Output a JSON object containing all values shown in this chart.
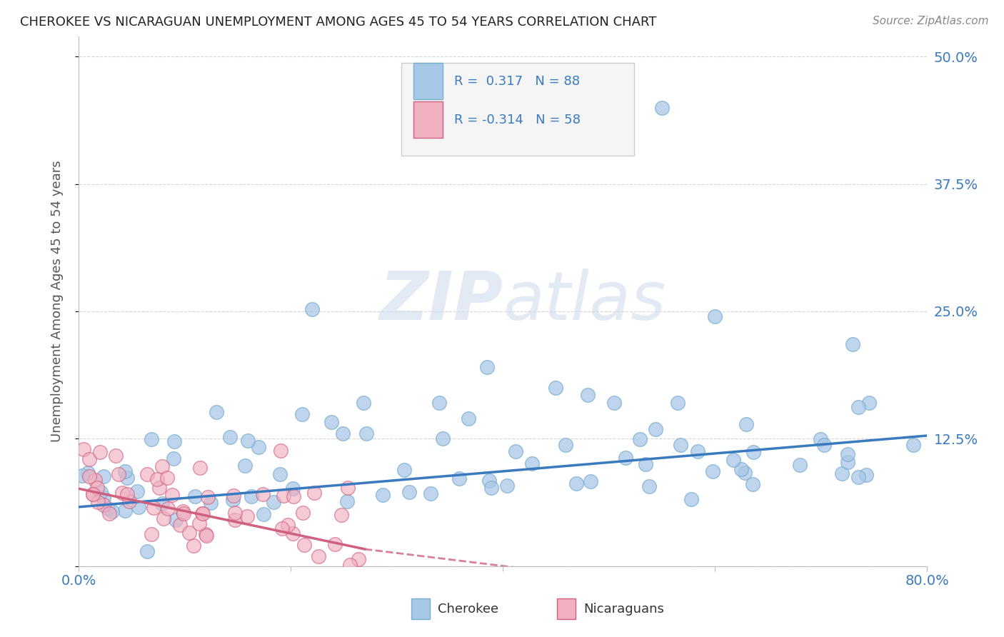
{
  "title": "CHEROKEE VS NICARAGUAN UNEMPLOYMENT AMONG AGES 45 TO 54 YEARS CORRELATION CHART",
  "source": "Source: ZipAtlas.com",
  "ylabel": "Unemployment Among Ages 45 to 54 years",
  "xlim": [
    0.0,
    0.8
  ],
  "ylim": [
    0.0,
    0.52
  ],
  "cherokee_R": 0.317,
  "cherokee_N": 88,
  "nicaraguan_R": -0.314,
  "nicaraguan_N": 58,
  "cherokee_color": "#a8c8e8",
  "cherokee_edge_color": "#7aaed0",
  "cherokee_line_color": "#3a7abf",
  "nicaraguan_color": "#f0b0c0",
  "nicaraguan_edge_color": "#d06080",
  "nicaraguan_line_color": "#d06080",
  "background_color": "#ffffff",
  "grid_color": "#cccccc",
  "title_color": "#222222",
  "axis_label_color": "#3a7abf",
  "watermark_color": "#ccdaeb",
  "legend_bg": "#f5f5f5",
  "legend_border": "#cccccc"
}
